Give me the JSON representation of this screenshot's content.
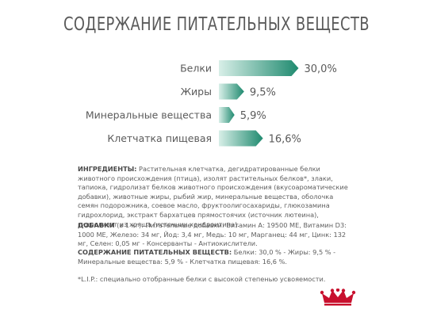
{
  "title": "СОДЕРЖАНИЕ ПИТАТЕЛЬНЫХ ВЕЩЕСТВ",
  "colors": {
    "accent": "#c8102e",
    "bar_dark": "#1f8a6f",
    "bar_light": "#d8efe8",
    "text": "#5a5a5a"
  },
  "chart_data": {
    "type": "bar",
    "orientation": "horizontal",
    "categories": [
      "Белки",
      "Жиры",
      "Минеральные вещества",
      "Клетчатка пищевая"
    ],
    "values": [
      30.0,
      9.5,
      5.9,
      16.6
    ],
    "value_labels": [
      "30,0%",
      "9,5%",
      "5,9%",
      "16,6%"
    ],
    "unit": "%",
    "title": "",
    "xlabel": "",
    "ylabel": "",
    "grid": false,
    "legend": "none"
  },
  "ingredients": {
    "label": "ИНГРЕДИЕНТЫ:",
    "text": " Растительная клетчатка, дегидратированные белки животного происхождения (птица), изолят растительных белков*, злаки, тапиока, гидролизат белков животного происхождения (вкусоароматические добавки), животные жиры, рыбий жир, минеральные вещества, оболочка семян подорожника, соевое масло, фруктоолигосахариды, глюкозамина гидрохлорид, экстракт бархатцев прямостоячих (источник лютеина), гидролизат из хряща (источник хондроитина)."
  },
  "additives": {
    "label": "ДОБАВКИ",
    "text": " (в 1 кг): Питательные добавки: Витамин А: 19500 МЕ, Витамин D3: 1000 МЕ, Железо: 34 мг, Йод: 3,4 мг, Медь: 10 мг, Марганец: 44 мг, Цинк: 132 мг, Селен: 0,05 мг - Консерванты - Антиокислители."
  },
  "nutrients": {
    "label": "СОДЕРЖАНИЕ ПИТАТЕЛЬНЫХ ВЕЩЕСТВ:",
    "text": " Белки: 30,0 % - Жиры: 9,5 % - Минеральные вещества: 5,9 % - Клетчатка пищевая: 16,6 %."
  },
  "footnote": "*L.I.P.: специально отобранные белки с высокой степенью усвояемости.",
  "logo": {
    "icon": "royal-crown-icon"
  }
}
